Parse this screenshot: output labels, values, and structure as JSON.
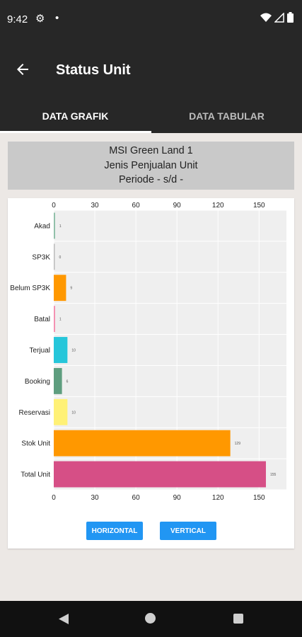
{
  "status_bar": {
    "time": "9:42",
    "left_icons": [
      "gear-icon",
      "dot-icon"
    ],
    "right_icons": [
      "wifi-icon",
      "signal-icon",
      "battery-icon"
    ]
  },
  "app_bar": {
    "title": "Status Unit"
  },
  "tabs": [
    {
      "label": "DATA GRAFIK",
      "active": true
    },
    {
      "label": "DATA TABULAR",
      "active": false
    }
  ],
  "report_header": {
    "line1": "MSI Green Land 1",
    "line2": "Jenis Penjualan Unit",
    "line3": "Periode - s/d -"
  },
  "chart_data": {
    "type": "bar",
    "orientation": "horizontal",
    "categories": [
      "Akad",
      "SP3K",
      "Belum SP3K",
      "Batal",
      "Terjual",
      "Booking",
      "Reservasi",
      "Stok Unit",
      "Total Unit"
    ],
    "values": [
      1,
      0,
      9,
      1,
      10,
      6,
      10,
      129,
      155
    ],
    "value_labels": [
      "1",
      "0",
      "9",
      "1",
      "10",
      "6",
      "10",
      "129",
      "155"
    ],
    "colors": [
      "#8fbfa8",
      "#bbbbbb",
      "#ff9800",
      "#f48fb1",
      "#26c6da",
      "#5e9e7f",
      "#fff176",
      "#ff9800",
      "#d64f86"
    ],
    "xticks": [
      "0",
      "30",
      "60",
      "90",
      "120",
      "150"
    ],
    "xlim": [
      0,
      170
    ],
    "grid": true
  },
  "buttons": {
    "horizontal": "HORIZONTAL",
    "vertical": "VERTICAL"
  },
  "nav_bar": {
    "icons": [
      "back-icon",
      "home-icon",
      "recents-icon"
    ]
  }
}
